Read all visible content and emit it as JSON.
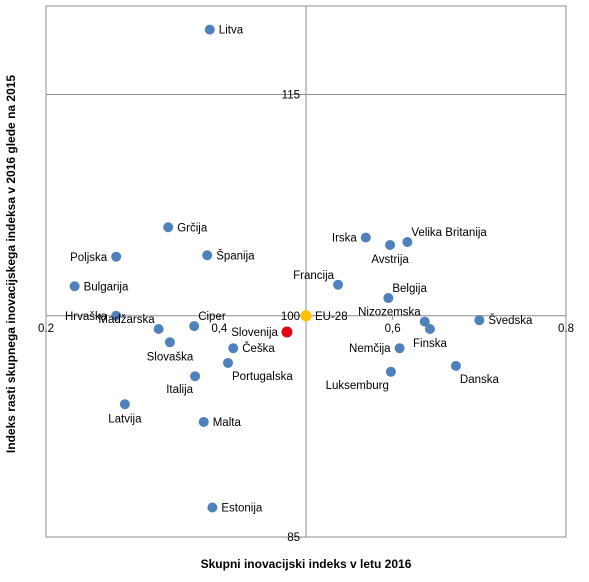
{
  "chart_data": {
    "type": "scatter",
    "xlabel": "Skupni inovacijski indeks v letu 2016",
    "ylabel": "Indeks rasti skupnega inovacijskega indeksa v 2016 glede na 2015",
    "xlim": [
      0.2,
      0.8
    ],
    "ylim": [
      85,
      121
    ],
    "x_ticks": [
      {
        "value": 0.2,
        "label": "0.2"
      },
      {
        "value": 0.4,
        "label": "0,4"
      },
      {
        "value": 0.6,
        "label": "0,6"
      },
      {
        "value": 0.8,
        "label": "0.8"
      }
    ],
    "y_ticks": [
      {
        "value": 115,
        "label": "115"
      },
      {
        "value": 100,
        "label": "100"
      },
      {
        "value": 85,
        "label": "85"
      }
    ],
    "reference_lines": {
      "x": 0.5,
      "y": 100
    },
    "grid": "reference-lines-only",
    "colors": {
      "default": "#4f81bd",
      "slovenia": "#e30613",
      "eu": "#ffc000",
      "eu_label": "#ffc000",
      "slovenia_label": "#e30613",
      "axis": "#8c8c8c"
    },
    "points": [
      {
        "name": "Litva",
        "x": 0.389,
        "y": 119.4,
        "label_pos": "right"
      },
      {
        "name": "Grčija",
        "x": 0.341,
        "y": 106.0,
        "label_pos": "right"
      },
      {
        "name": "Poljska",
        "x": 0.281,
        "y": 104.0,
        "label_pos": "left"
      },
      {
        "name": "Španija",
        "x": 0.386,
        "y": 104.1,
        "label_pos": "right"
      },
      {
        "name": "Bulgarija",
        "x": 0.233,
        "y": 102.0,
        "label_pos": "right"
      },
      {
        "name": "Hrvaška",
        "x": 0.281,
        "y": 100.0,
        "label_pos": "left"
      },
      {
        "name": "Madžarska",
        "x": 0.33,
        "y": 99.1,
        "label_pos": "above-left"
      },
      {
        "name": "Ciper",
        "x": 0.371,
        "y": 99.3,
        "label_pos": "above-right"
      },
      {
        "name": "Slovaška",
        "x": 0.343,
        "y": 98.2,
        "label_pos": "below"
      },
      {
        "name": "Slovenija",
        "x": 0.478,
        "y": 98.9,
        "label_pos": "left",
        "highlight": "slovenia"
      },
      {
        "name": "Češka",
        "x": 0.416,
        "y": 97.8,
        "label_pos": "right"
      },
      {
        "name": "Portugalska",
        "x": 0.41,
        "y": 96.8,
        "label_pos": "below-right"
      },
      {
        "name": "Italija",
        "x": 0.372,
        "y": 95.9,
        "label_pos": "below-left"
      },
      {
        "name": "Latvija",
        "x": 0.291,
        "y": 94.0,
        "label_pos": "below"
      },
      {
        "name": "Malta",
        "x": 0.382,
        "y": 92.8,
        "label_pos": "right"
      },
      {
        "name": "Estonija",
        "x": 0.392,
        "y": 87.0,
        "label_pos": "right"
      },
      {
        "name": "EU-28",
        "x": 0.5,
        "y": 100.0,
        "label_pos": "right",
        "highlight": "eu"
      },
      {
        "name": "Francija",
        "x": 0.537,
        "y": 102.1,
        "label_pos": "above-left"
      },
      {
        "name": "Irska",
        "x": 0.569,
        "y": 105.3,
        "label_pos": "left"
      },
      {
        "name": "Avstrija",
        "x": 0.597,
        "y": 104.8,
        "label_pos": "below"
      },
      {
        "name": "Velika Britanija",
        "x": 0.617,
        "y": 105.0,
        "label_pos": "above-right"
      },
      {
        "name": "Belgija",
        "x": 0.595,
        "y": 101.2,
        "label_pos": "above-right"
      },
      {
        "name": "Nizozemska",
        "x": 0.637,
        "y": 99.6,
        "label_pos": "above-left"
      },
      {
        "name": "Švedska",
        "x": 0.7,
        "y": 99.7,
        "label_pos": "right"
      },
      {
        "name": "Finska",
        "x": 0.643,
        "y": 99.1,
        "label_pos": "below"
      },
      {
        "name": "Nemčija",
        "x": 0.608,
        "y": 97.8,
        "label_pos": "left"
      },
      {
        "name": "Luksemburg",
        "x": 0.598,
        "y": 96.2,
        "label_pos": "below-left"
      },
      {
        "name": "Danska",
        "x": 0.673,
        "y": 96.6,
        "label_pos": "below-right"
      }
    ]
  }
}
